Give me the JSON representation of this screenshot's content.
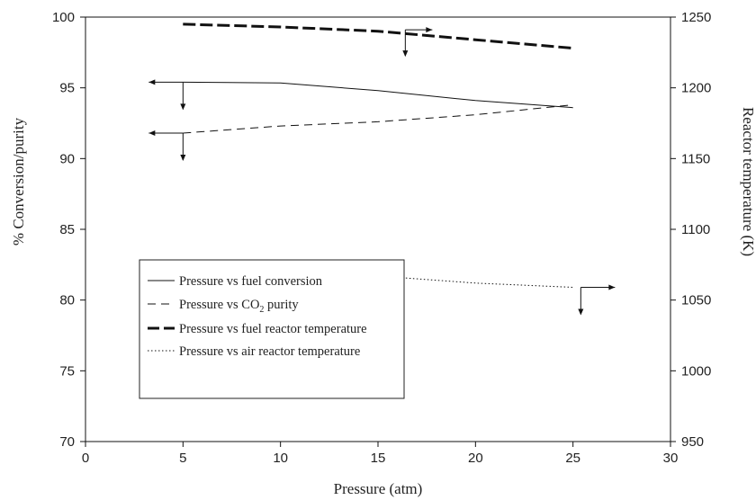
{
  "chart_data": {
    "type": "line",
    "xlabel": "Pressure (atm)",
    "ylabel": "% Conversion/purity",
    "y2label": "Reactor temperature (K)",
    "xlim": [
      0,
      30
    ],
    "ylim": [
      70,
      100
    ],
    "y2lim": [
      950,
      1250
    ],
    "xticks": [
      0,
      5,
      10,
      15,
      20,
      25,
      30
    ],
    "yticks": [
      70,
      75,
      80,
      85,
      90,
      95,
      100
    ],
    "y2ticks": [
      950,
      1000,
      1050,
      1100,
      1150,
      1200,
      1250
    ],
    "grid": false,
    "legend_position": "bottom-left",
    "series": [
      {
        "name": "Pressure vs fuel conversion",
        "axis": "left",
        "style": "solid",
        "x": [
          5,
          10,
          15,
          20,
          25
        ],
        "y": [
          95.4,
          95.35,
          94.8,
          94.1,
          93.6
        ]
      },
      {
        "name": "Pressure vs CO2 purity",
        "name_main": "Pressure vs CO",
        "name_sub": "2",
        "name_tail": " purity",
        "axis": "left",
        "style": "dashed",
        "x": [
          5,
          10,
          15,
          20,
          25
        ],
        "y": [
          91.8,
          92.3,
          92.6,
          93.1,
          93.8
        ]
      },
      {
        "name": "Pressure vs fuel reactor temperature",
        "axis": "right",
        "style": "thick-dashed",
        "x": [
          5,
          10,
          15,
          20,
          25
        ],
        "y": [
          1245,
          1243,
          1240,
          1234,
          1228
        ]
      },
      {
        "name": "Pressure vs air reactor temperature",
        "axis": "right",
        "style": "dotted",
        "x": [
          5,
          10,
          15,
          20,
          25
        ],
        "y": [
          1074,
          1072,
          1067,
          1062,
          1059
        ]
      }
    ]
  }
}
